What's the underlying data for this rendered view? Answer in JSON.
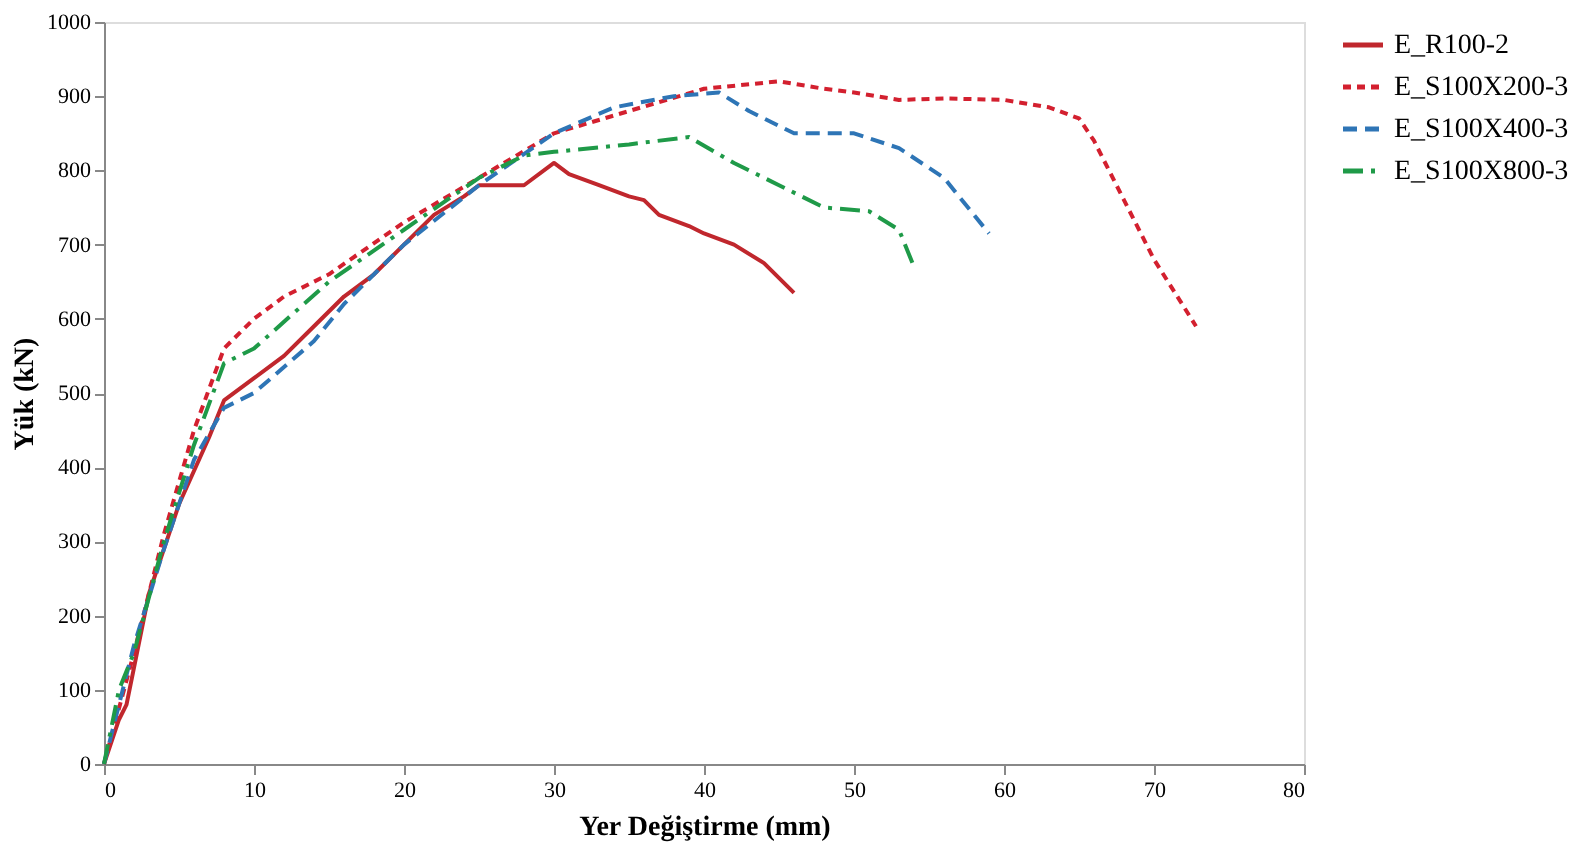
{
  "chart_data": {
    "type": "line",
    "xlabel": "Yer Değiştirme (mm)",
    "ylabel": "Yük (kN)",
    "xlim": [
      0,
      80
    ],
    "xticks": [
      0,
      10,
      20,
      30,
      40,
      50,
      60,
      70,
      80
    ],
    "ylim": [
      0,
      1000
    ],
    "yticks": [
      0,
      100,
      200,
      300,
      400,
      500,
      600,
      700,
      800,
      900,
      1000
    ],
    "grid": false,
    "legend": "right",
    "marker": "none",
    "series": [
      {
        "name": "E_R100-2",
        "color": "#c0272d",
        "line_style": "solid",
        "x": [
          0,
          1,
          1.5,
          2,
          3,
          5,
          7,
          8,
          10,
          12,
          14,
          16,
          18,
          20,
          22,
          24,
          25,
          28,
          30,
          31,
          33,
          35,
          36,
          37,
          39,
          40,
          42,
          44,
          46
        ],
        "values": [
          0,
          60,
          80,
          130,
          230,
          350,
          440,
          490,
          520,
          550,
          590,
          630,
          660,
          700,
          740,
          765,
          780,
          780,
          810,
          795,
          780,
          765,
          760,
          740,
          725,
          715,
          700,
          675,
          635
        ]
      },
      {
        "name": "E_S100X200-3",
        "color": "#d3202f",
        "line_style": "dashed",
        "x": [
          0,
          2,
          4,
          6,
          8,
          10,
          12,
          15,
          20,
          25,
          30,
          35,
          40,
          45,
          48,
          50,
          53,
          56,
          60,
          63,
          65,
          66,
          68,
          70,
          72.8
        ],
        "values": [
          0,
          150,
          310,
          450,
          560,
          600,
          630,
          660,
          730,
          790,
          850,
          880,
          910,
          920,
          910,
          905,
          895,
          897,
          895,
          885,
          870,
          840,
          760,
          680,
          590
        ]
      },
      {
        "name": "E_S100X400-3",
        "color": "#2e75b6",
        "line_style": "longdash",
        "x": [
          0,
          2,
          4,
          6,
          8,
          10,
          14,
          16,
          20,
          25,
          30,
          34,
          38,
          41,
          43,
          45,
          46,
          50,
          53,
          56,
          59
        ],
        "values": [
          0,
          160,
          290,
          410,
          480,
          500,
          570,
          620,
          700,
          780,
          850,
          885,
          900,
          905,
          880,
          860,
          850,
          850,
          830,
          790,
          715
        ]
      },
      {
        "name": "E_S100X800-3",
        "color": "#1f9a48",
        "line_style": "dashdot",
        "x": [
          0,
          1,
          2,
          4,
          6,
          8,
          10,
          15,
          20,
          25,
          28,
          30,
          35,
          39,
          42,
          45,
          48,
          51,
          53,
          54
        ],
        "values": [
          0,
          100,
          150,
          300,
          430,
          540,
          560,
          650,
          720,
          790,
          820,
          825,
          835,
          845,
          810,
          780,
          750,
          745,
          720,
          670
        ]
      }
    ]
  }
}
